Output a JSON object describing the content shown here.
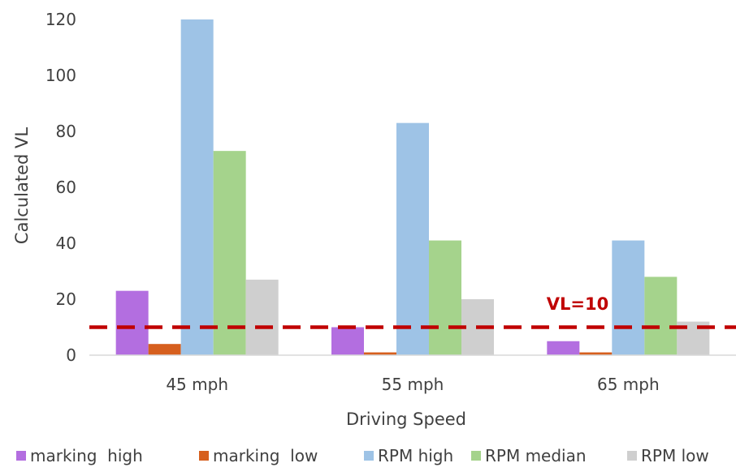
{
  "chart_data": {
    "type": "bar",
    "title": "",
    "xlabel": "Driving Speed",
    "ylabel": "Calculated VL",
    "categories": [
      "45 mph",
      "55 mph",
      "65 mph"
    ],
    "series": [
      {
        "name": "marking  high",
        "values": [
          23,
          10,
          5
        ],
        "color": "#b36ee0"
      },
      {
        "name": "marking  low",
        "values": [
          4,
          1,
          1
        ],
        "color": "#d65f1e"
      },
      {
        "name": "RPM high",
        "values": [
          120,
          83,
          41
        ],
        "color": "#9ec3e6"
      },
      {
        "name": "RPM median",
        "values": [
          73,
          41,
          28
        ],
        "color": "#a5d38c"
      },
      {
        "name": "RPM low",
        "values": [
          27,
          20,
          12
        ],
        "color": "#cfcfcf"
      }
    ],
    "ylim": [
      0,
      120
    ],
    "yticks": [
      0,
      20,
      40,
      60,
      80,
      100,
      120
    ],
    "grid": false,
    "legend": "bottom",
    "reference_line": {
      "label": "VL=10",
      "value": 10,
      "color": "#c00000",
      "style": "dashed"
    }
  }
}
